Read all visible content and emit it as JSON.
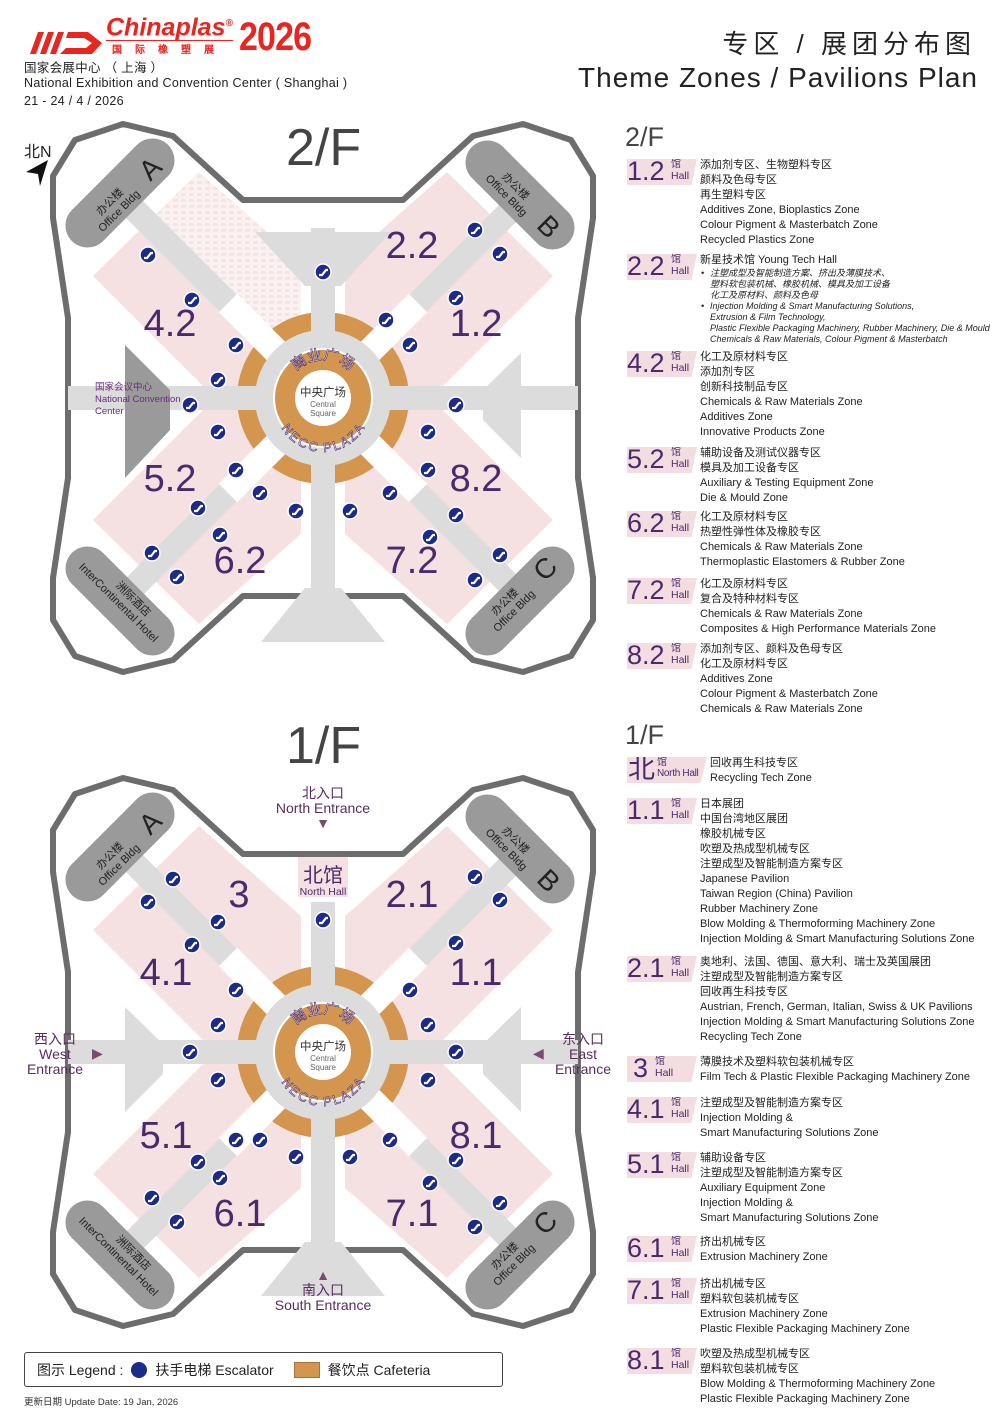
{
  "header": {
    "logo_word": "Chinaplas",
    "logo_reg": "®",
    "logo_cn": "国际橡塑展",
    "logo_year": "2026",
    "venue_cn": "国家会展中心 （ 上海 ）",
    "venue_en": "National Exhibition and Convention Center ( Shanghai )",
    "dates": "21 - 24 / 4 / 2026",
    "title_cn": "专区 / 展团分布图",
    "title_en": "Theme Zones / Pavilions Plan"
  },
  "colors": {
    "brand_red": "#e8251f",
    "hall_purple": "#4a2a6e",
    "hall_pink": "#f5e1e1",
    "corridor": "#dcdcdc",
    "cafeteria": "#d4964f",
    "escalator": "#1c2a8a",
    "building": "#9a9a9a"
  },
  "map": {
    "compass": "北N",
    "office_cn": "办公楼",
    "office_en": "Office Bldg",
    "office_a": "A",
    "office_b": "B",
    "office_c": "C",
    "hotel_cn": "洲际酒店",
    "hotel_en": "InterContinental Hotel",
    "ncc_cn": "国家会议中心",
    "ncc_en1": "National Convention",
    "ncc_en2": "Center",
    "plaza_cn": "商业广场",
    "plaza_en": "NECC PLAZA",
    "square_cn": "中央广场",
    "square_en1": "Central",
    "square_en2": "Square",
    "floors": [
      {
        "title": "2/F",
        "halls": [
          "2.2",
          "1.2",
          "4.2",
          "5.2",
          "8.2",
          "6.2",
          "7.2"
        ]
      },
      {
        "title": "1/F",
        "halls": [
          "3",
          "2.1",
          "4.1",
          "1.1",
          "5.1",
          "8.1",
          "6.1",
          "7.1"
        ],
        "north_hall_cn": "北馆",
        "north_hall_en": "North Hall",
        "north_entrance_cn": "北入口",
        "north_entrance_en": "North Entrance",
        "south_entrance_cn": "南入口",
        "south_entrance_en": "South Entrance",
        "west_entrance_cn": "西入口",
        "west_entrance_en1": "West",
        "west_entrance_en2": "Entrance",
        "east_entrance_cn": "东入口",
        "east_entrance_en1": "East",
        "east_entrance_en2": "Entrance"
      }
    ]
  },
  "zones": [
    {
      "floor": "2/F",
      "entries": [
        {
          "hall": "1.2",
          "g": "馆",
          "h": "Hall",
          "lines": [
            "添加剂专区、生物塑料专区",
            "颜料及色母专区",
            "再生塑料专区",
            "Additives Zone, Bioplastics Zone",
            "Colour Pigment & Masterbatch Zone",
            "Recycled Plastics Zone"
          ]
        },
        {
          "hall": "2.2",
          "g": "馆",
          "h": "Hall",
          "lines": [
            "新星技术馆 Young Tech Hall"
          ],
          "bullets": [
            [
              "注塑成型及智能制造方案、挤出及薄膜技术、",
              "塑料软包装机械、橡胶机械、模具及加工设备",
              "化工及原材料、颜料及色母"
            ],
            [
              "Injection Molding & Smart Manufacturing Solutions,",
              "Extrusion & Film Technology,",
              "Plastic Flexible Packaging Machinery, Rubber Machinery, Die & Mould",
              "Chemicals & Raw Materials, Colour Pigment & Masterbatch"
            ]
          ]
        },
        {
          "hall": "4.2",
          "g": "馆",
          "h": "Hall",
          "lines": [
            "化工及原材料专区",
            "添加剂专区",
            "创新科技制品专区",
            "Chemicals & Raw Materials Zone",
            "Additives Zone",
            "Innovative Products Zone"
          ]
        },
        {
          "hall": "5.2",
          "g": "馆",
          "h": "Hall",
          "lines": [
            "辅助设备及测试仪器专区",
            "模具及加工设备专区",
            "Auxiliary & Testing Equipment Zone",
            "Die & Mould Zone"
          ]
        },
        {
          "hall": "6.2",
          "g": "馆",
          "h": "Hall",
          "lines": [
            "化工及原材料专区",
            "热塑性弹性体及橡胶专区",
            "Chemicals & Raw Materials Zone",
            "Thermoplastic Elastomers & Rubber Zone"
          ]
        },
        {
          "hall": "7.2",
          "g": "馆",
          "h": "Hall",
          "lines": [
            "化工及原材料专区",
            "复合及特种材料专区",
            "Chemicals & Raw Materials Zone",
            "Composites & High Performance Materials Zone"
          ]
        },
        {
          "hall": "8.2",
          "g": "馆",
          "h": "Hall",
          "lines": [
            "添加剂专区、颜料及色母专区",
            "化工及原材料专区",
            "Additives Zone",
            "Colour Pigment & Masterbatch Zone",
            "Chemicals & Raw Materials Zone"
          ]
        }
      ]
    },
    {
      "floor": "1/F",
      "entries": [
        {
          "hall": "北",
          "g": "馆",
          "h": "North Hall",
          "lines": [
            "回收再生科技专区",
            "Recycling Tech Zone"
          ]
        },
        {
          "hall": "1.1",
          "g": "馆",
          "h": "Hall",
          "lines": [
            "日本展团",
            "中国台湾地区展团",
            "橡胶机械专区",
            "吹塑及热成型机械专区",
            "注塑成型及智能制造方案专区",
            "Japanese Pavilion",
            "Taiwan Region (China) Pavilion",
            "Rubber Machinery Zone",
            "Blow Molding & Thermoforming Machinery Zone",
            "Injection Molding & Smart Manufacturing Solutions Zone"
          ]
        },
        {
          "hall": "2.1",
          "g": "馆",
          "h": "Hall",
          "lines": [
            "奥地利、法国、德国、意大利、瑞士及英国展团",
            "注塑成型及智能制造方案专区",
            "回收再生科技专区",
            "Austrian, French, German, Italian, Swiss & UK Pavilions",
            "Injection Molding & Smart Manufacturing Solutions Zone",
            "Recycling Tech Zone"
          ]
        },
        {
          "hall": "3",
          "g": "馆",
          "h": "Hall",
          "lines": [
            "薄膜技术及塑料软包装机械专区",
            "Film Tech & Plastic Flexible Packaging Machinery Zone"
          ]
        },
        {
          "hall": "4.1",
          "g": "馆",
          "h": "Hall",
          "lines": [
            "注塑成型及智能制造方案专区",
            "Injection Molding &",
            "Smart Manufacturing Solutions Zone"
          ]
        },
        {
          "hall": "5.1",
          "g": "馆",
          "h": "Hall",
          "lines": [
            "辅助设备专区",
            "注塑成型及智能制造方案专区",
            "Auxiliary Equipment Zone",
            "Injection Molding &",
            "Smart Manufacturing Solutions Zone"
          ]
        },
        {
          "hall": "6.1",
          "g": "馆",
          "h": "Hall",
          "lines": [
            "挤出机械专区",
            "Extrusion Machinery Zone"
          ]
        },
        {
          "hall": "7.1",
          "g": "馆",
          "h": "Hall",
          "lines": [
            "挤出机械专区",
            "塑料软包装机械专区",
            "Extrusion Machinery Zone",
            "Plastic Flexible Packaging Machinery Zone"
          ]
        },
        {
          "hall": "8.1",
          "g": "馆",
          "h": "Hall",
          "lines": [
            "吹塑及热成型机械专区",
            "塑料软包装机械专区",
            "Blow Molding & Thermoforming Machinery Zone",
            "Plastic Flexible Packaging Machinery Zone"
          ]
        }
      ]
    }
  ],
  "legend": {
    "label": "图示 Legend :",
    "escalator": "扶手电梯 Escalator",
    "cafeteria": "餐饮点 Cafeteria",
    "escalator_icon": "escalator-icon",
    "cafeteria_icon": "cafeteria-swatch"
  },
  "update": "更新日期 Update Date: 19 Jan, 2026"
}
